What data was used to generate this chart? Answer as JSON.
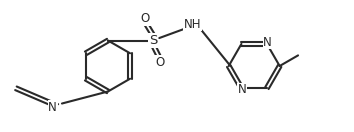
{
  "bg_color": "#ffffff",
  "line_color": "#2a2a2a",
  "line_width": 1.5,
  "font_size": 8.5,
  "fig_width": 3.54,
  "fig_height": 1.32,
  "dpi": 100,
  "xlim": [
    0,
    10.0
  ],
  "ylim": [
    0,
    3.7
  ]
}
